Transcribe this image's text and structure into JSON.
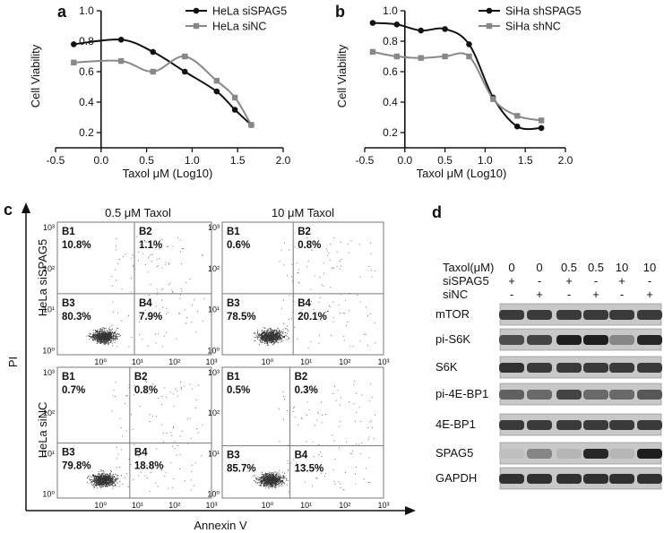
{
  "panels": {
    "a": "a",
    "b": "b",
    "c": "c",
    "d": "d"
  },
  "chart_data": [
    {
      "id": "a",
      "type": "line",
      "xlabel": "Taxol μM (Log10)",
      "ylabel": "Cell Viability",
      "xlim": [
        -0.5,
        2.0
      ],
      "ylim": [
        0.1,
        1.0
      ],
      "xticks": [
        "-0.5",
        "0.0",
        "0.5",
        "1.0",
        "1.5",
        "2.0"
      ],
      "yticks": [
        "0.2",
        "0.4",
        "0.6",
        "0.8",
        "1.0"
      ],
      "legend_position": "top-right",
      "series": [
        {
          "name": "HeLa siSPAG5",
          "color": "#111111",
          "marker": "circle",
          "x": [
            -0.3,
            0.22,
            0.57,
            0.92,
            1.27,
            1.47,
            1.65
          ],
          "y": [
            0.78,
            0.81,
            0.73,
            0.6,
            0.47,
            0.35,
            0.25
          ]
        },
        {
          "name": "HeLa siNC",
          "color": "#888888",
          "marker": "square",
          "x": [
            -0.3,
            0.22,
            0.57,
            0.92,
            1.27,
            1.47,
            1.65
          ],
          "y": [
            0.66,
            0.67,
            0.6,
            0.7,
            0.54,
            0.43,
            0.25
          ]
        }
      ]
    },
    {
      "id": "b",
      "type": "line",
      "xlabel": "Taxol μM (Log10)",
      "ylabel": "Cell Viability",
      "xlim": [
        -0.5,
        2.0
      ],
      "ylim": [
        0.1,
        1.0
      ],
      "xticks": [
        "-0.5",
        "0.0",
        "0.5",
        "1.0",
        "1.5",
        "2.0"
      ],
      "yticks": [
        "0.2",
        "0.4",
        "0.6",
        "0.8",
        "1.0"
      ],
      "legend_position": "top-right",
      "series": [
        {
          "name": "SiHa shSPAG5",
          "color": "#111111",
          "marker": "circle",
          "x": [
            -0.4,
            -0.1,
            0.2,
            0.5,
            0.8,
            1.1,
            1.4,
            1.7
          ],
          "y": [
            0.92,
            0.91,
            0.87,
            0.88,
            0.78,
            0.43,
            0.24,
            0.23
          ]
        },
        {
          "name": "SiHa shNC",
          "color": "#888888",
          "marker": "square",
          "x": [
            -0.4,
            -0.1,
            0.2,
            0.5,
            0.8,
            1.1,
            1.4,
            1.7
          ],
          "y": [
            0.73,
            0.7,
            0.69,
            0.7,
            0.7,
            0.42,
            0.31,
            0.28
          ]
        }
      ]
    }
  ],
  "flow": {
    "col_titles": [
      "0.5 μM Taxol",
      "10 μM Taxol"
    ],
    "row_labels": [
      "HeLa siSPAG5",
      "HeLa siNC"
    ],
    "xlabel": "Annexin V",
    "ylabel": "PI",
    "ytick_labels": [
      "10⁰",
      "10¹",
      "10²",
      "10³"
    ],
    "xtick_labels": [
      "10⁰",
      "10¹",
      "10²",
      "10³"
    ],
    "plots": [
      {
        "q": [
          [
            "B1",
            "10.8%"
          ],
          [
            "B2",
            "1.1%"
          ],
          [
            "B3",
            "80.3%"
          ],
          [
            "B4",
            "7.9%"
          ]
        ]
      },
      {
        "q": [
          [
            "B1",
            "0.6%"
          ],
          [
            "B2",
            "0.8%"
          ],
          [
            "B3",
            "78.5%"
          ],
          [
            "B4",
            "20.1%"
          ]
        ]
      },
      {
        "q": [
          [
            "B1",
            "0.7%"
          ],
          [
            "B2",
            "0.8%"
          ],
          [
            "B3",
            "79.8%"
          ],
          [
            "B4",
            "18.8%"
          ]
        ]
      },
      {
        "q": [
          [
            "B1",
            "0.5%"
          ],
          [
            "B2",
            "0.3%"
          ],
          [
            "B3",
            "85.7%"
          ],
          [
            "B4",
            "13.5%"
          ]
        ]
      }
    ]
  },
  "western": {
    "header_label": "Taxol(μM)",
    "taxol": [
      "0",
      "0",
      "0.5",
      "0.5",
      "10",
      "10"
    ],
    "rows": [
      {
        "label": "siSPAG5",
        "marks": [
          "+",
          "-",
          "+",
          "-",
          "+",
          "-"
        ]
      },
      {
        "label": "siNC",
        "marks": [
          "-",
          "+",
          "-",
          "+",
          "-",
          "+"
        ]
      }
    ],
    "blots": [
      "mTOR",
      "pi-S6K",
      "S6K",
      "pi-4E-BP1",
      "4E-BP1",
      "SPAG5",
      "GAPDH"
    ],
    "intensity": [
      [
        0.8,
        0.8,
        0.8,
        0.8,
        0.8,
        0.8
      ],
      [
        0.7,
        0.75,
        0.95,
        0.95,
        0.4,
        0.9
      ],
      [
        0.85,
        0.8,
        0.8,
        0.8,
        0.8,
        0.8
      ],
      [
        0.6,
        0.55,
        0.75,
        0.55,
        0.55,
        0.65
      ],
      [
        0.8,
        0.8,
        0.8,
        0.8,
        0.8,
        0.8
      ],
      [
        0.1,
        0.4,
        0.15,
        0.9,
        0.15,
        0.95
      ],
      [
        0.85,
        0.85,
        0.85,
        0.85,
        0.85,
        0.85
      ]
    ]
  }
}
